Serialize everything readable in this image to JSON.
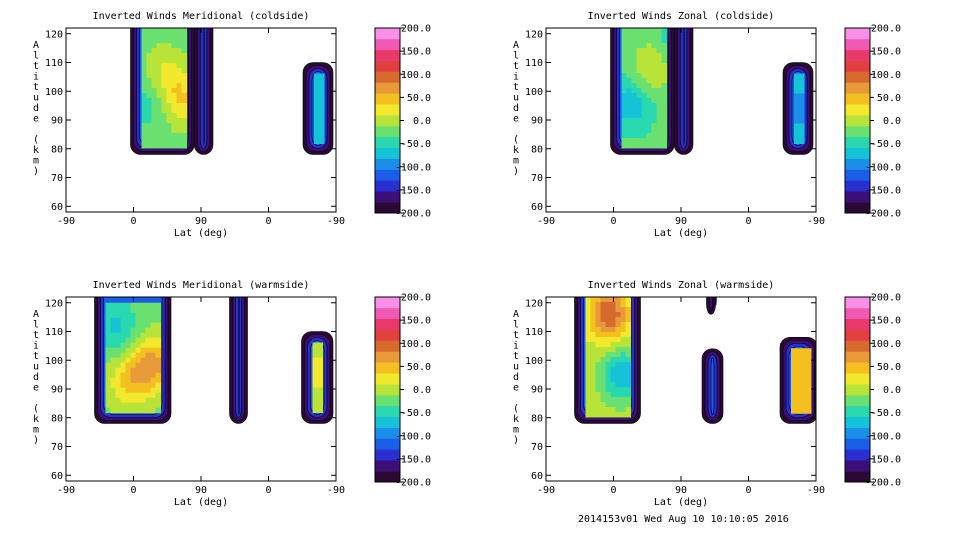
{
  "footer": {
    "run_id": "2014153v01",
    "timestamp": "Wed Aug 10 10:10:05 2016"
  },
  "colors": {
    "colorbar": [
      "#2a0a35",
      "#3a0f78",
      "#2a2fd0",
      "#1a5ee8",
      "#1a8ee8",
      "#16c2d8",
      "#2ad8b0",
      "#6ae070",
      "#b8e43a",
      "#f2e82e",
      "#f4c020",
      "#e89a38",
      "#d86a30",
      "#e04040",
      "#e83a6a",
      "#f05ab4",
      "#f890e8"
    ]
  },
  "chart_data": [
    {
      "type": "heatmap",
      "title": "Inverted Winds Meridional (coldside)",
      "xlabel": "Lat (deg)",
      "ylabel": "Altitude (km)",
      "x_ticks": [
        "-90",
        "0",
        "90",
        "0",
        "-90"
      ],
      "y_ticks": [
        60,
        70,
        80,
        90,
        100,
        110,
        120
      ],
      "ylim": [
        58,
        122
      ],
      "colorbar_ticks": [
        "200.0",
        "150.0",
        "100.0",
        "50.0",
        "0.0",
        "-50.0",
        "-100.0",
        "-150.0",
        "-200.0"
      ],
      "clim": [
        -200,
        200
      ],
      "cores": [
        {
          "x": 1,
          "y": 96,
          "value": -45
        },
        {
          "x": 2,
          "y": 108,
          "value": 8
        },
        {
          "x": 3,
          "y": 100,
          "value": 18
        },
        {
          "x": 3.6,
          "y": 94,
          "value": 10
        },
        {
          "x": 4.3,
          "y": 100,
          "value": -35
        },
        {
          "x": 6,
          "y": 95,
          "value": -80
        }
      ],
      "regions": [
        {
          "x0": -0.2,
          "x1": 4.05,
          "y0": 78,
          "y1": 122,
          "base": -25
        },
        {
          "x0": 4.05,
          "x1": 5.3,
          "y0": 78,
          "y1": 122,
          "base": 0
        },
        {
          "x0": 11.3,
          "x1": 13.3,
          "y0": 78,
          "y1": 110,
          "base": -60
        }
      ]
    },
    {
      "type": "heatmap",
      "title": "Inverted Winds Zonal (coldside)",
      "xlabel": "Lat (deg)",
      "ylabel": "Altitude (km)",
      "x_ticks": [
        "-90",
        "0",
        "90",
        "0",
        "-90"
      ],
      "y_ticks": [
        60,
        70,
        80,
        90,
        100,
        110,
        120
      ],
      "ylim": [
        58,
        122
      ],
      "colorbar_ticks": [
        "200.0",
        "150.0",
        "100.0",
        "50.0",
        "0.0",
        "-50.0",
        "-100.0",
        "-150.0",
        "-200.0"
      ],
      "clim": [
        -200,
        200
      ],
      "cores": [
        {
          "x": 1.2,
          "y": 96,
          "value": -75
        },
        {
          "x": 2.5,
          "y": 108,
          "value": 15
        },
        {
          "x": 4.5,
          "y": 110,
          "value": -30
        },
        {
          "x": 5.2,
          "y": 116,
          "value": -160
        },
        {
          "x": 12.3,
          "y": 94,
          "value": -95
        }
      ],
      "regions": [
        {
          "x0": -0.2,
          "x1": 4.05,
          "y0": 78,
          "y1": 122,
          "base": -30
        },
        {
          "x0": 4.05,
          "x1": 5.3,
          "y0": 78,
          "y1": 122,
          "base": -45
        },
        {
          "x0": 11.3,
          "x1": 13.3,
          "y0": 78,
          "y1": 110,
          "base": -55
        }
      ]
    },
    {
      "type": "heatmap",
      "title": "Inverted Winds Meridional (warmside)",
      "xlabel": "Lat (deg)",
      "ylabel": "Altitude (km)",
      "x_ticks": [
        "-90",
        "0",
        "90",
        "0",
        "-90"
      ],
      "y_ticks": [
        60,
        70,
        80,
        90,
        100,
        110,
        120
      ],
      "ylim": [
        58,
        122
      ],
      "colorbar_ticks": [
        "200.0",
        "150.0",
        "100.0",
        "50.0",
        "0.0",
        "-50.0",
        "-100.0",
        "-150.0",
        "-200.0"
      ],
      "clim": [
        -200,
        200
      ],
      "cores": [
        {
          "x": -1.2,
          "y": 112,
          "value": -65
        },
        {
          "x": -0.5,
          "y": 92,
          "value": 25
        },
        {
          "x": 0.7,
          "y": 96,
          "value": 35
        },
        {
          "x": 1.5,
          "y": 100,
          "value": 35
        },
        {
          "x": 7.2,
          "y": 96,
          "value": -25
        },
        {
          "x": 12.2,
          "y": 96,
          "value": 20
        }
      ],
      "regions": [
        {
          "x0": -2.6,
          "x1": 2.5,
          "y0": 78,
          "y1": 120,
          "base": -20
        },
        {
          "x0": 6.4,
          "x1": 7.6,
          "y0": 78,
          "y1": 122,
          "base": -10
        },
        {
          "x0": 11.2,
          "x1": 13.3,
          "y0": 78,
          "y1": 110,
          "base": -5
        }
      ]
    },
    {
      "type": "heatmap",
      "title": "Inverted Winds Zonal (warmside)",
      "xlabel": "Lat (deg)",
      "ylabel": "Altitude (km)",
      "x_ticks": [
        "-90",
        "0",
        "90",
        "0",
        "-90"
      ],
      "y_ticks": [
        60,
        70,
        80,
        90,
        100,
        110,
        120
      ],
      "ylim": [
        58,
        122
      ],
      "colorbar_ticks": [
        "200.0",
        "150.0",
        "100.0",
        "50.0",
        "0.0",
        "-50.0",
        "-100.0",
        "-150.0",
        "-200.0"
      ],
      "clim": [
        -200,
        200
      ],
      "cores": [
        {
          "x": -0.3,
          "y": 116,
          "value": 105
        },
        {
          "x": 0.5,
          "y": 95,
          "value": -40
        },
        {
          "x": 0.5,
          "y": 95,
          "value": -40
        },
        {
          "x": 6.5,
          "y": 92,
          "value": -155
        },
        {
          "x": 12.6,
          "y": 90,
          "value": 45
        }
      ],
      "regions": [
        {
          "x0": -2.6,
          "x1": 1.8,
          "y0": 78,
          "y1": 122,
          "base": 0
        },
        {
          "x0": 5.9,
          "x1": 7.3,
          "y0": 78,
          "y1": 104,
          "base": -110
        },
        {
          "x0": 6.2,
          "x1": 6.8,
          "y0": 116,
          "y1": 122,
          "base": -100
        },
        {
          "x0": 11.1,
          "x1": 13.6,
          "y0": 78,
          "y1": 108,
          "base": 40
        }
      ]
    }
  ]
}
